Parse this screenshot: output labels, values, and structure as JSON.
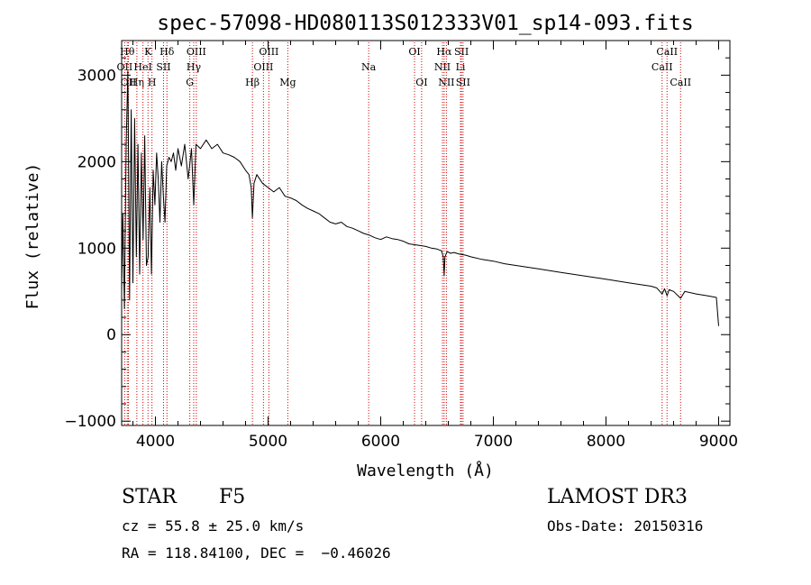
{
  "chart_data": {
    "type": "line",
    "title": "spec-57098-HD080113S012333V01_sp14-093.fits",
    "xlabel": "Wavelength (Å)",
    "ylabel": "Flux (relative)",
    "xlim": [
      3700,
      9100
    ],
    "ylim": [
      -1050,
      3400
    ],
    "xticks": [
      4000,
      5000,
      6000,
      7000,
      8000,
      9000
    ],
    "yticks": [
      -1000,
      0,
      1000,
      2000,
      3000
    ],
    "xtick_labels": [
      "4000",
      "5000",
      "6000",
      "7000",
      "8000",
      "9000"
    ],
    "ytick_labels": [
      "−1000",
      "0",
      "1000",
      "2000",
      "3000"
    ],
    "grid": false,
    "series": [
      {
        "name": "flux",
        "x": [
          3700,
          3710,
          3725,
          3740,
          3755,
          3770,
          3785,
          3800,
          3815,
          3830,
          3845,
          3860,
          3875,
          3890,
          3905,
          3920,
          3935,
          3950,
          3965,
          3980,
          3995,
          4010,
          4025,
          4040,
          4055,
          4070,
          4085,
          4100,
          4120,
          4140,
          4160,
          4180,
          4200,
          4230,
          4260,
          4290,
          4320,
          4340,
          4360,
          4400,
          4450,
          4500,
          4550,
          4600,
          4650,
          4700,
          4750,
          4800,
          4830,
          4850,
          4861,
          4875,
          4900,
          4950,
          5000,
          5050,
          5100,
          5150,
          5200,
          5250,
          5300,
          5350,
          5400,
          5450,
          5500,
          5550,
          5600,
          5650,
          5700,
          5750,
          5800,
          5850,
          5900,
          5950,
          6000,
          6050,
          6100,
          6150,
          6200,
          6250,
          6300,
          6350,
          6400,
          6450,
          6500,
          6540,
          6555,
          6563,
          6570,
          6590,
          6620,
          6650,
          6700,
          6750,
          6800,
          6900,
          7000,
          7100,
          7200,
          7300,
          7400,
          7500,
          7600,
          7700,
          7800,
          7900,
          8000,
          8100,
          8200,
          8300,
          8400,
          8450,
          8498,
          8520,
          8542,
          8560,
          8600,
          8662,
          8700,
          8800,
          8900,
          8980,
          9000
        ],
        "y": [
          500,
          1400,
          300,
          2200,
          3050,
          400,
          2600,
          600,
          2500,
          900,
          2200,
          700,
          2100,
          1100,
          2300,
          800,
          900,
          1700,
          700,
          1900,
          1500,
          2100,
          1800,
          1300,
          2000,
          1600,
          1300,
          1950,
          2050,
          2000,
          2100,
          1900,
          2150,
          1950,
          2200,
          1800,
          2150,
          1500,
          2200,
          2150,
          2250,
          2150,
          2200,
          2100,
          2080,
          2050,
          2000,
          1900,
          1850,
          1700,
          1350,
          1750,
          1850,
          1750,
          1700,
          1650,
          1700,
          1600,
          1580,
          1550,
          1500,
          1460,
          1430,
          1400,
          1350,
          1300,
          1280,
          1300,
          1250,
          1230,
          1200,
          1170,
          1150,
          1120,
          1100,
          1130,
          1110,
          1100,
          1080,
          1050,
          1040,
          1030,
          1020,
          1000,
          990,
          970,
          900,
          680,
          900,
          960,
          940,
          950,
          930,
          920,
          900,
          870,
          850,
          820,
          800,
          780,
          760,
          740,
          720,
          700,
          680,
          660,
          640,
          620,
          600,
          580,
          560,
          540,
          470,
          530,
          450,
          520,
          500,
          420,
          500,
          470,
          450,
          430,
          100
        ]
      }
    ],
    "line_markers": [
      {
        "label": "OII",
        "wavelength": 3727,
        "row": 2
      },
      {
        "label": "Hθ",
        "wavelength": 3750,
        "row": 1
      },
      {
        "label": "OII",
        "wavelength": 3760,
        "row": 3
      },
      {
        "label": "Hη",
        "wavelength": 3835,
        "row": 3
      },
      {
        "label": "HeI",
        "wavelength": 3889,
        "row": 2
      },
      {
        "label": "K",
        "wavelength": 3934,
        "row": 1
      },
      {
        "label": "H",
        "wavelength": 3969,
        "row": 3
      },
      {
        "label": "SII",
        "wavelength": 4072,
        "row": 2
      },
      {
        "label": "Hδ",
        "wavelength": 4102,
        "row": 1
      },
      {
        "label": "G",
        "wavelength": 4305,
        "row": 3
      },
      {
        "label": "Hγ",
        "wavelength": 4340,
        "row": 2
      },
      {
        "label": "OIII",
        "wavelength": 4363,
        "row": 1
      },
      {
        "label": "Hβ",
        "wavelength": 4861,
        "row": 3
      },
      {
        "label": "OIII",
        "wavelength": 4959,
        "row": 2
      },
      {
        "label": "OIII",
        "wavelength": 5007,
        "row": 1
      },
      {
        "label": "Mg",
        "wavelength": 5175,
        "row": 3
      },
      {
        "label": "Na",
        "wavelength": 5893,
        "row": 2
      },
      {
        "label": "OI",
        "wavelength": 6300,
        "row": 1
      },
      {
        "label": "OI",
        "wavelength": 6363,
        "row": 3
      },
      {
        "label": "NII",
        "wavelength": 6548,
        "row": 2
      },
      {
        "label": "Hα",
        "wavelength": 6563,
        "row": 1
      },
      {
        "label": "NII",
        "wavelength": 6583,
        "row": 3
      },
      {
        "label": "Li",
        "wavelength": 6708,
        "row": 2
      },
      {
        "label": "SII",
        "wavelength": 6717,
        "row": 1
      },
      {
        "label": "SII",
        "wavelength": 6731,
        "row": 3
      },
      {
        "label": "CaII",
        "wavelength": 8498,
        "row": 2
      },
      {
        "label": "CaII",
        "wavelength": 8542,
        "row": 1
      },
      {
        "label": "CaII",
        "wavelength": 8662,
        "row": 3
      }
    ]
  },
  "info": {
    "object_class": "STAR",
    "subclass": "F5",
    "survey": "LAMOST DR3",
    "cz": "cz = 55.8 ± 25.0 km/s",
    "obs_date": "Obs-Date: 20150316",
    "coords": "RA = 118.84100, DEC =  −0.46026"
  }
}
